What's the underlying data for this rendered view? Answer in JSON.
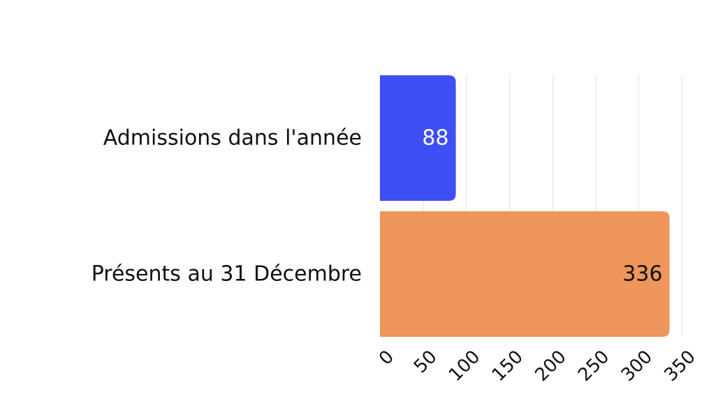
{
  "chart_data": {
    "type": "bar",
    "orientation": "horizontal",
    "title": "",
    "xlabel": "",
    "ylabel": "",
    "categories": [
      "Admissions dans l'année",
      "Présents au 31 Décembre"
    ],
    "values": [
      88,
      336
    ],
    "colors": [
      "#3d4ff5",
      "#ee965b"
    ],
    "data_label_colors": [
      "#ffffff",
      "#111111"
    ],
    "xlim": [
      0,
      350
    ],
    "x_ticks": [
      0,
      50,
      100,
      150,
      200,
      250,
      300,
      350
    ],
    "grid": "vertical",
    "legend": "none"
  }
}
